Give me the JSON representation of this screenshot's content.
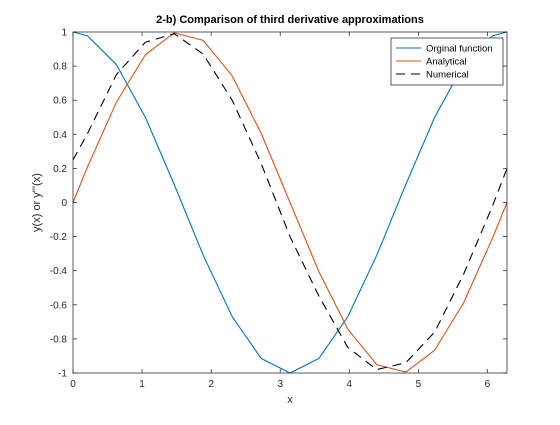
{
  "chart_data": {
    "type": "line",
    "title": "2-b) Comparison of third derivative approximations",
    "xlabel": "x",
    "ylabel": "y(x) or y'''(x)",
    "xlim": [
      0,
      6.283
    ],
    "ylim": [
      -1,
      1
    ],
    "xticks": [
      "0",
      "1",
      "2",
      "3",
      "4",
      "5",
      "6"
    ],
    "yticks": [
      "1",
      "0.8",
      "0.6",
      "0.4",
      "0.2",
      "0",
      "-0.2",
      "-0.4",
      "-0.6",
      "-0.8",
      "-1"
    ],
    "grid": false,
    "legend_position": "top-right",
    "series": [
      {
        "name": "Orginal function",
        "color": "#0072BD",
        "dash": "solid",
        "x": [
          0,
          0.209,
          0.628,
          1.047,
          1.466,
          1.885,
          2.304,
          2.723,
          3.142,
          3.561,
          3.979,
          4.398,
          4.817,
          5.236,
          5.655,
          6.074,
          6.283
        ],
        "y": [
          1,
          0.978,
          0.809,
          0.5,
          0.105,
          -0.309,
          -0.669,
          -0.914,
          -1,
          -0.914,
          -0.669,
          -0.309,
          0.105,
          0.5,
          0.809,
          0.978,
          1
        ]
      },
      {
        "name": "Analytical",
        "color": "#D95319",
        "dash": "solid",
        "x": [
          0,
          0.209,
          0.628,
          1.047,
          1.466,
          1.885,
          2.304,
          2.723,
          3.142,
          3.561,
          3.979,
          4.398,
          4.817,
          5.236,
          5.655,
          6.074,
          6.283
        ],
        "y": [
          0,
          0.208,
          0.588,
          0.866,
          0.995,
          0.951,
          0.743,
          0.407,
          0,
          -0.407,
          -0.743,
          -0.951,
          -0.995,
          -0.866,
          -0.588,
          -0.208,
          0
        ]
      },
      {
        "name": "Numerical",
        "color": "#000000",
        "dash": "dashed",
        "x": [
          0,
          0.209,
          0.628,
          1.047,
          1.466,
          1.885,
          2.304,
          2.723,
          3.142,
          3.561,
          3.979,
          4.398,
          4.817,
          5.236,
          5.655,
          6.074,
          6.283
        ],
        "y": [
          0.25,
          0.404,
          0.75,
          0.94,
          0.99,
          0.87,
          0.6,
          0.23,
          -0.2,
          -0.55,
          -0.85,
          -0.98,
          -0.94,
          -0.76,
          -0.42,
          -0.02,
          0.2
        ]
      }
    ]
  }
}
